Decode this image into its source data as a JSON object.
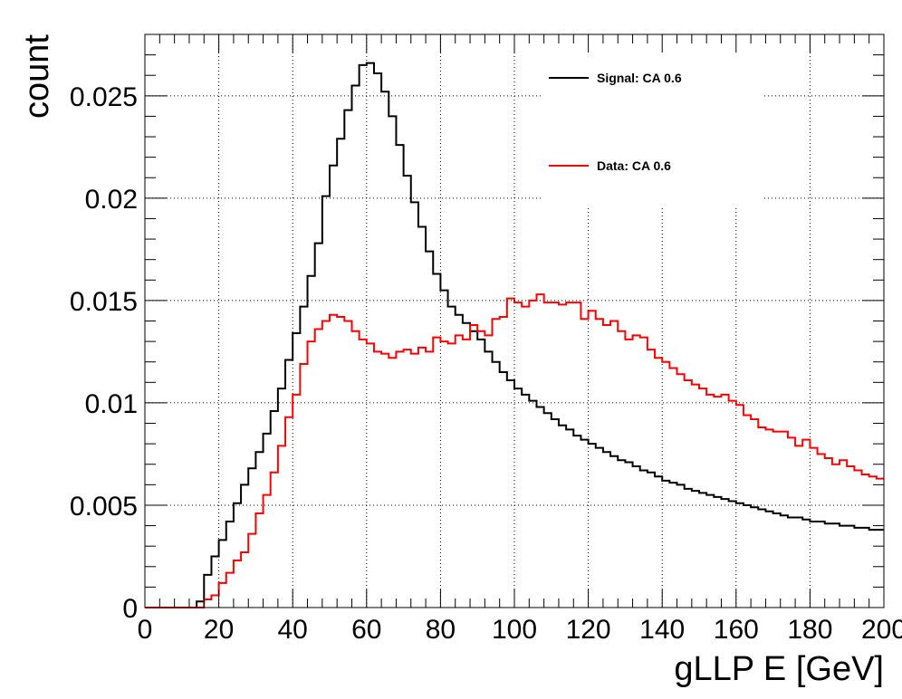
{
  "chart_data": {
    "type": "line",
    "xlabel": "gLLP E [GeV]",
    "ylabel": "count",
    "xlim": [
      0,
      200
    ],
    "ylim": [
      0,
      0.028
    ],
    "x_ticks": [
      0,
      20,
      40,
      60,
      80,
      100,
      120,
      140,
      160,
      180,
      200
    ],
    "y_ticks": [
      0,
      0.005,
      0.01,
      0.015,
      0.02,
      0.025
    ],
    "x_tick_labels": [
      "0",
      "20",
      "40",
      "60",
      "80",
      "100",
      "120",
      "140",
      "160",
      "180",
      "200"
    ],
    "y_tick_labels": [
      "0",
      "0.005",
      "0.01",
      "0.015",
      "0.02",
      "0.025"
    ],
    "grid": true,
    "legend_position": "top-right",
    "bin_width": 2,
    "series": [
      {
        "name": "Signal: CA 0.6",
        "color": "#000000",
        "values": [
          0,
          0,
          0,
          0,
          0,
          0,
          0,
          0.0003,
          0.0016,
          0.0025,
          0.0033,
          0.0042,
          0.0051,
          0.006,
          0.0068,
          0.0076,
          0.0085,
          0.0096,
          0.0107,
          0.0121,
          0.0134,
          0.0147,
          0.0162,
          0.0178,
          0.0201,
          0.0216,
          0.0229,
          0.0243,
          0.0255,
          0.0265,
          0.0266,
          0.0261,
          0.0252,
          0.024,
          0.0226,
          0.0211,
          0.0198,
          0.0186,
          0.0174,
          0.0163,
          0.0155,
          0.0147,
          0.0143,
          0.0139,
          0.0135,
          0.0131,
          0.0125,
          0.012,
          0.0115,
          0.0111,
          0.0107,
          0.0104,
          0.0101,
          0.0098,
          0.0095,
          0.0092,
          0.0089,
          0.0087,
          0.0084,
          0.0082,
          0.008,
          0.0078,
          0.0076,
          0.0074,
          0.0072,
          0.0071,
          0.0069,
          0.0067,
          0.0066,
          0.0064,
          0.0062,
          0.0061,
          0.006,
          0.0058,
          0.0057,
          0.0056,
          0.0055,
          0.0054,
          0.0053,
          0.0052,
          0.0051,
          0.005,
          0.0049,
          0.0048,
          0.0047,
          0.0046,
          0.0045,
          0.0044,
          0.0044,
          0.0043,
          0.0042,
          0.0042,
          0.0041,
          0.0041,
          0.004,
          0.004,
          0.0039,
          0.0039,
          0.0038,
          0.0038
        ]
      },
      {
        "name": "Data: CA 0.6",
        "color": "#ff0000",
        "values": [
          0,
          0,
          0,
          0,
          0,
          0,
          0,
          0,
          0.0004,
          0.0006,
          0.0012,
          0.0017,
          0.0023,
          0.0027,
          0.0036,
          0.0046,
          0.0055,
          0.0066,
          0.0079,
          0.0093,
          0.0104,
          0.0119,
          0.013,
          0.0136,
          0.014,
          0.0143,
          0.0142,
          0.014,
          0.0135,
          0.0131,
          0.0129,
          0.0125,
          0.0124,
          0.0122,
          0.0125,
          0.0126,
          0.0124,
          0.0127,
          0.0125,
          0.0132,
          0.013,
          0.0129,
          0.0133,
          0.0131,
          0.0138,
          0.0135,
          0.0133,
          0.0141,
          0.0142,
          0.0151,
          0.0149,
          0.0147,
          0.015,
          0.0153,
          0.0149,
          0.0149,
          0.0148,
          0.0149,
          0.0149,
          0.0141,
          0.0145,
          0.0141,
          0.0138,
          0.014,
          0.0135,
          0.0131,
          0.0133,
          0.0132,
          0.0126,
          0.0122,
          0.012,
          0.0117,
          0.0114,
          0.0111,
          0.0109,
          0.0107,
          0.0104,
          0.0103,
          0.0104,
          0.0101,
          0.0099,
          0.0094,
          0.0092,
          0.0088,
          0.0087,
          0.0086,
          0.0086,
          0.0083,
          0.0079,
          0.0082,
          0.0078,
          0.0075,
          0.0073,
          0.007,
          0.0072,
          0.0069,
          0.0067,
          0.0065,
          0.0064,
          0.0063
        ]
      }
    ]
  }
}
